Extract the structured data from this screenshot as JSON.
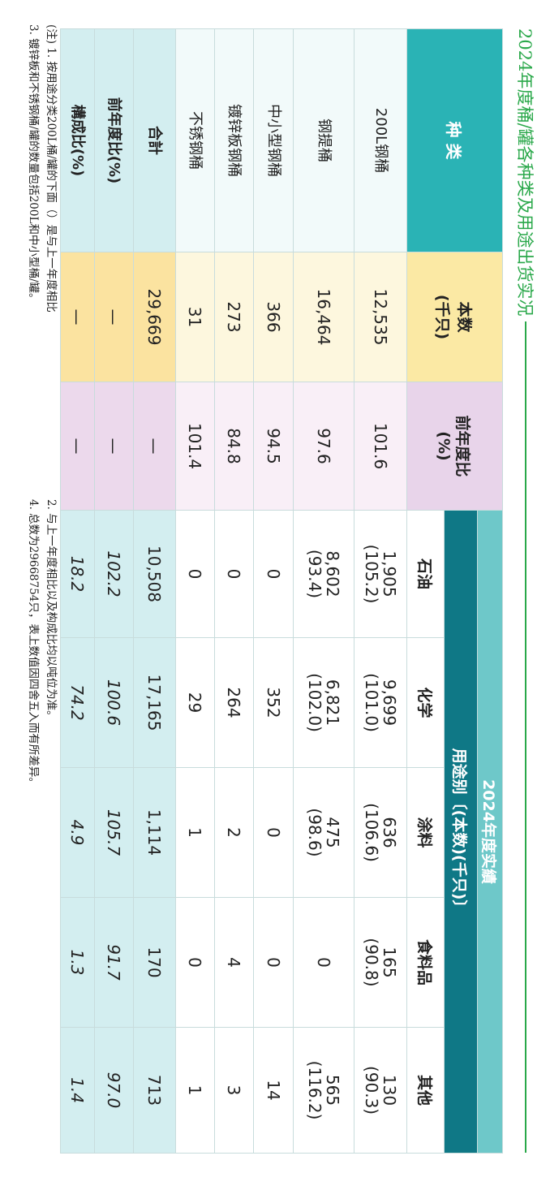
{
  "title": "2024年度桶/罐各种类及用途出货实况",
  "table": {
    "group_header": "2024年度实績",
    "sub_header": "用途别〔(本数)(千只)〕",
    "columns": [
      "种 类",
      "本数\n(千只)",
      "前年度比\n(%)",
      "石油",
      "化学",
      "涂料",
      "食料品",
      "其他"
    ],
    "rows": [
      [
        "200L钢桶",
        "12,535",
        "101.6",
        "1,905\n(105.2)",
        "9,699\n(101.0)",
        "636\n(106.6)",
        "165\n(90.8)",
        "130\n(90.3)"
      ],
      [
        "钢提桶",
        "16,464",
        "97.6",
        "8,602\n(93.4)",
        "6,821\n(102.0)",
        "475\n(98.6)",
        "0",
        "565\n(116.2)"
      ],
      [
        "中小型钢桶",
        "366",
        "94.5",
        "0",
        "352",
        "0",
        "0",
        "14"
      ],
      [
        "镀锌板钢桶",
        "273",
        "84.8",
        "0",
        "264",
        "2",
        "4",
        "3"
      ],
      [
        "不锈钢桶",
        "31",
        "101.4",
        "0",
        "29",
        "1",
        "0",
        "1"
      ],
      [
        "合計",
        "29,669",
        "—",
        "10,508",
        "17,165",
        "1,114",
        "170",
        "713"
      ],
      [
        "前年度比(%)",
        "—",
        "—",
        "102.2",
        "100.6",
        "105.7",
        "91.7",
        "97.0"
      ],
      [
        "構成比(%)",
        "—",
        "—",
        "18.2",
        "74.2",
        "4.9",
        "1.3",
        "1.4"
      ]
    ]
  },
  "notes": [
    "(注) 1. 按用途分类200L桶/罐的下面（）是与上一年度相比",
    "2. 与上一年度相比以及构成比均以吨位为准。",
    "3. 镀锌板和不锈钢桶/罐的数量包括200L和中小型桶/罐。",
    "4. 总数为29668754只，表上数值因四舍五入而有所差异。"
  ]
}
